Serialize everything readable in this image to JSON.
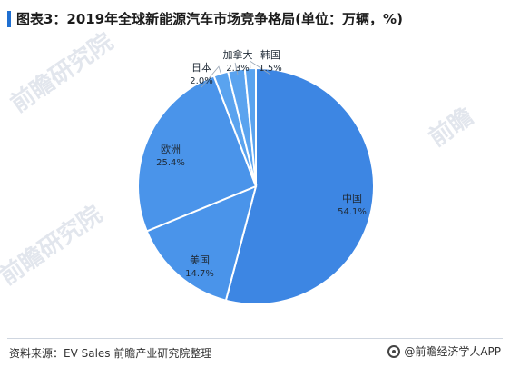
{
  "title": "图表3：2019年全球新能源汽车市场竞争格局(单位：万辆，%)",
  "source": "资料来源：EV Sales 前瞻产业研究院整理",
  "brand": "@前瞻经济学人APP",
  "watermark": "前瞻研究院",
  "watermark_side": "前瞻",
  "watermark_center": "产业研究院",
  "colors": {
    "slice_main": "#3d86e3",
    "slice_other": "#4a94ea",
    "slice_light": "#5aa3ef",
    "slice_stroke": "#ffffff",
    "label_text": "#1f2a36"
  },
  "chart_data": {
    "type": "pie",
    "start_angle_deg": 0,
    "direction": "clockwise",
    "slices": [
      {
        "name": "中国",
        "value": 54.1,
        "label": "54.1%"
      },
      {
        "name": "美国",
        "value": 14.7,
        "label": "14.7%"
      },
      {
        "name": "欧洲",
        "value": 25.4,
        "label": "25.4%"
      },
      {
        "name": "日本",
        "value": 2.0,
        "label": "2.0%"
      },
      {
        "name": "加拿大",
        "value": 2.3,
        "label": "2.3%"
      },
      {
        "name": "韩国",
        "value": 1.5,
        "label": "1.5%"
      }
    ]
  }
}
